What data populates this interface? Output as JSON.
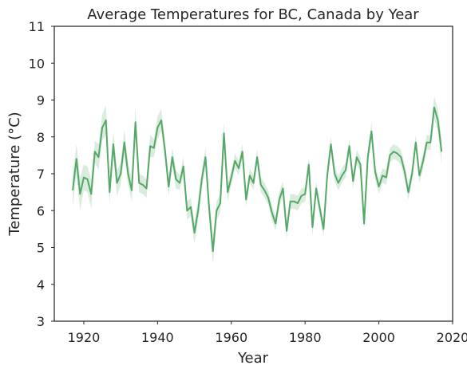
{
  "chart_data": {
    "type": "line",
    "title": "Average Temperatures for BC, Canada by Year",
    "xlabel": "Year",
    "ylabel": "Temperature (°C)",
    "xlim": [
      1912,
      2020
    ],
    "ylim": [
      3,
      11
    ],
    "xticks": [
      1920,
      1940,
      1960,
      1980,
      2000,
      2020
    ],
    "yticks": [
      3,
      4,
      5,
      6,
      7,
      8,
      9,
      10,
      11
    ],
    "grid": false,
    "colors": {
      "line": "#55a868",
      "band": "#55a868"
    },
    "series": [
      {
        "x": [
          1917,
          1918,
          1919,
          1920,
          1921,
          1922,
          1923,
          1924,
          1925,
          1926,
          1927,
          1928,
          1929,
          1930,
          1931,
          1932,
          1933,
          1934,
          1935,
          1936,
          1937,
          1938,
          1939,
          1940,
          1941,
          1942,
          1943,
          1944,
          1945,
          1946,
          1947,
          1948,
          1949,
          1950,
          1951,
          1952,
          1953,
          1954,
          1955,
          1956,
          1957,
          1958,
          1959,
          1960,
          1961,
          1962,
          1963,
          1964,
          1965,
          1966,
          1967,
          1968,
          1969,
          1970,
          1971,
          1972,
          1973,
          1974,
          1975,
          1976,
          1977,
          1978,
          1979,
          1980,
          1981,
          1982,
          1983,
          1984,
          1985,
          1986,
          1987,
          1988,
          1989,
          1990,
          1991,
          1992,
          1993,
          1994,
          1995,
          1996,
          1997,
          1998,
          1999,
          2000,
          2001,
          2002,
          2003,
          2004,
          2005,
          2006,
          2007,
          2008,
          2009,
          2010,
          2011,
          2012,
          2013,
          2014,
          2015,
          2016,
          2017
        ],
        "y": [
          6.55,
          7.4,
          6.45,
          6.9,
          6.85,
          6.45,
          7.6,
          7.45,
          8.25,
          8.45,
          6.5,
          7.8,
          6.75,
          7.0,
          7.85,
          7.0,
          6.55,
          8.4,
          6.75,
          6.7,
          6.6,
          7.75,
          7.7,
          8.25,
          8.45,
          7.65,
          6.65,
          7.45,
          6.85,
          6.75,
          7.2,
          6.0,
          6.1,
          5.4,
          6.0,
          6.85,
          7.45,
          6.05,
          4.9,
          6.0,
          6.2,
          8.1,
          6.5,
          6.9,
          7.35,
          7.15,
          7.6,
          6.3,
          6.95,
          6.75,
          7.45,
          6.7,
          6.55,
          6.35,
          5.95,
          5.65,
          6.3,
          6.6,
          5.45,
          6.25,
          6.25,
          6.2,
          6.4,
          6.45,
          7.25,
          5.55,
          6.6,
          6.05,
          5.5,
          6.95,
          7.8,
          7.0,
          6.75,
          6.95,
          7.1,
          7.75,
          6.8,
          7.45,
          7.25,
          5.65,
          7.45,
          8.15,
          7.05,
          6.65,
          6.95,
          6.9,
          7.5,
          7.6,
          7.55,
          7.45,
          7.05,
          6.5,
          7.0,
          7.85,
          6.95,
          7.35,
          7.85,
          7.85,
          8.8,
          8.45,
          7.6
        ],
        "band_half_width": [
          0.45,
          0.4,
          0.45,
          0.35,
          0.35,
          0.4,
          0.3,
          0.35,
          0.35,
          0.4,
          0.3,
          0.35,
          0.35,
          0.3,
          0.35,
          0.3,
          0.3,
          0.4,
          0.25,
          0.25,
          0.25,
          0.3,
          0.25,
          0.3,
          0.3,
          0.25,
          0.25,
          0.25,
          0.25,
          0.2,
          0.25,
          0.25,
          0.25,
          0.3,
          0.3,
          0.25,
          0.25,
          0.3,
          0.35,
          0.25,
          0.25,
          0.3,
          0.25,
          0.2,
          0.2,
          0.2,
          0.2,
          0.2,
          0.2,
          0.2,
          0.2,
          0.2,
          0.2,
          0.2,
          0.2,
          0.2,
          0.2,
          0.2,
          0.2,
          0.2,
          0.2,
          0.2,
          0.2,
          0.2,
          0.2,
          0.25,
          0.2,
          0.2,
          0.2,
          0.2,
          0.2,
          0.2,
          0.2,
          0.2,
          0.2,
          0.2,
          0.2,
          0.2,
          0.2,
          0.2,
          0.2,
          0.25,
          0.2,
          0.2,
          0.2,
          0.2,
          0.2,
          0.2,
          0.2,
          0.2,
          0.2,
          0.2,
          0.2,
          0.2,
          0.2,
          0.2,
          0.2,
          0.2,
          0.3,
          0.3,
          0.35
        ]
      }
    ]
  }
}
